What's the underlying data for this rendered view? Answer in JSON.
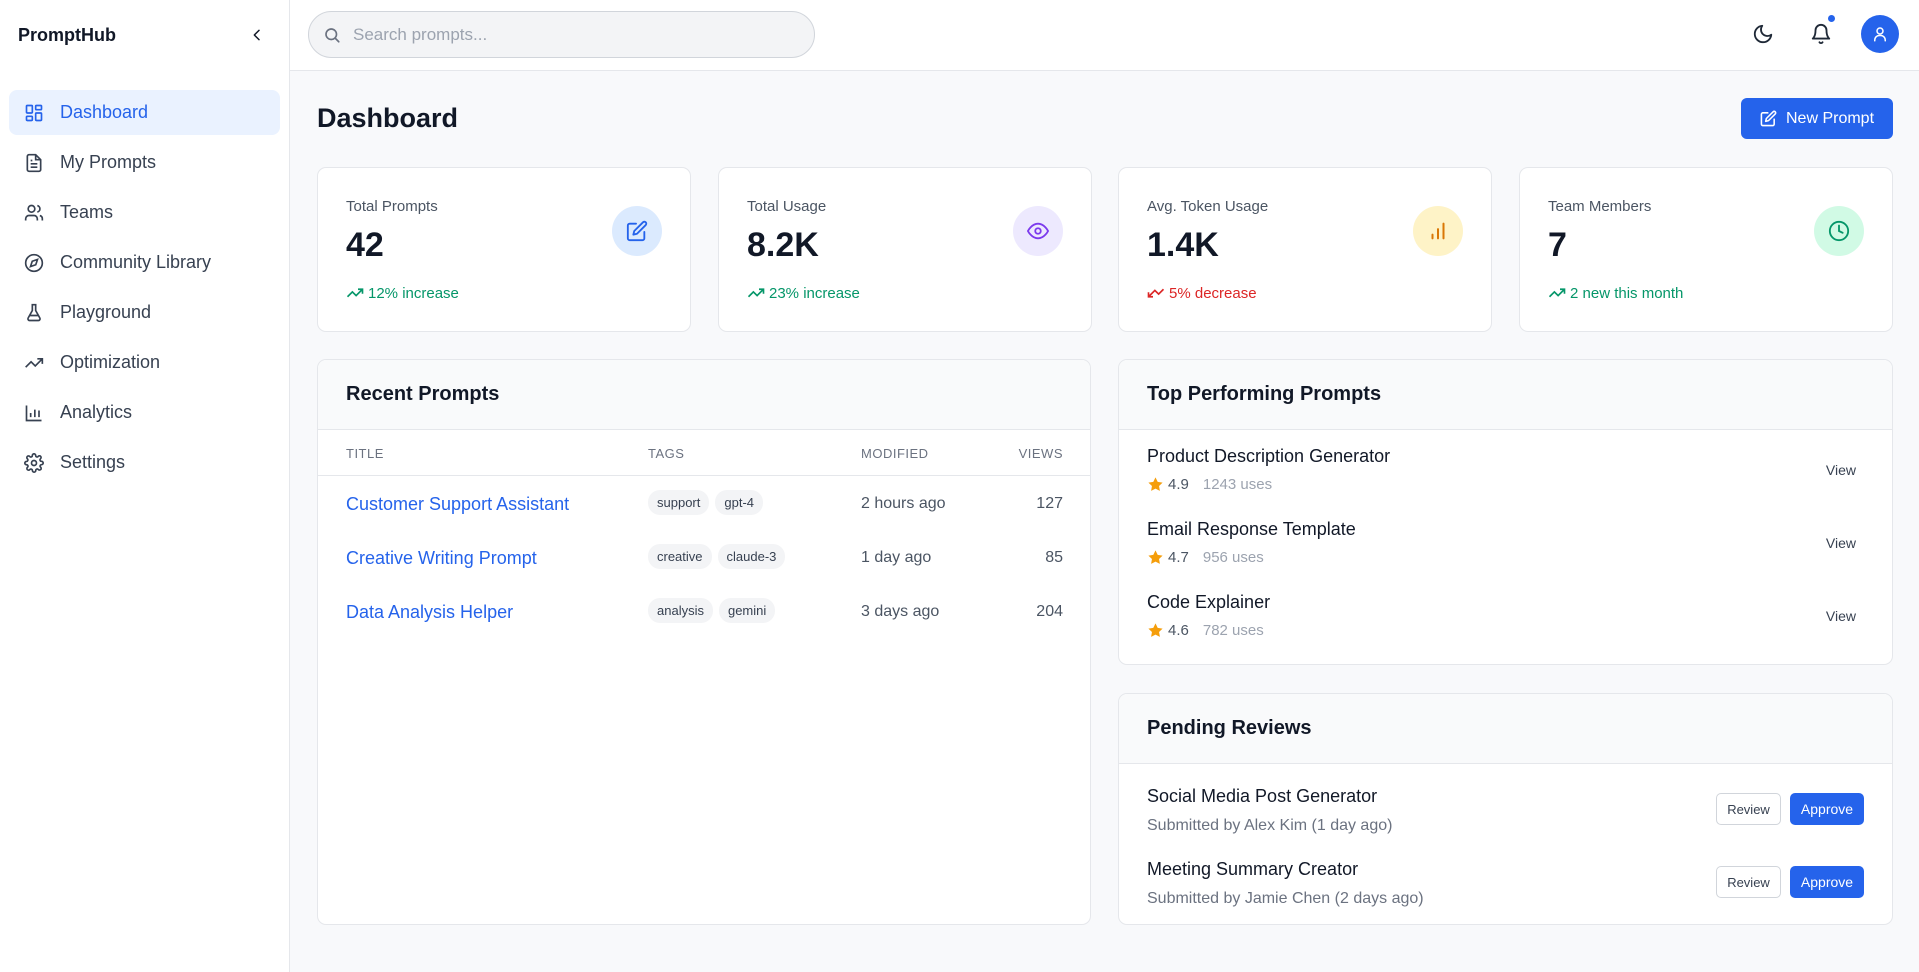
{
  "app": {
    "brand": "PromptHub"
  },
  "sidebar": {
    "items": [
      {
        "label": "Dashboard",
        "icon": "grid-icon",
        "active": true
      },
      {
        "label": "My Prompts",
        "icon": "document-icon"
      },
      {
        "label": "Teams",
        "icon": "users-icon"
      },
      {
        "label": "Community Library",
        "icon": "compass-icon"
      },
      {
        "label": "Playground",
        "icon": "flask-icon"
      },
      {
        "label": "Optimization",
        "icon": "trend-up-icon"
      },
      {
        "label": "Analytics",
        "icon": "bar-chart-icon"
      },
      {
        "label": "Settings",
        "icon": "gear-icon"
      }
    ]
  },
  "header": {
    "search_placeholder": "Search prompts...",
    "search_value": ""
  },
  "page": {
    "title": "Dashboard",
    "new_button": "New Prompt"
  },
  "stats": [
    {
      "label": "Total Prompts",
      "value": "42",
      "trend": "12% increase",
      "direction": "up",
      "icon": "edit-icon",
      "color": "#2563eb",
      "bg": "#dbeafe"
    },
    {
      "label": "Total Usage",
      "value": "8.2K",
      "trend": "23% increase",
      "direction": "up",
      "icon": "eye-icon",
      "color": "#7c3aed",
      "bg": "#ede9fe"
    },
    {
      "label": "Avg. Token Usage",
      "value": "1.4K",
      "trend": "5% decrease",
      "direction": "down",
      "icon": "bar-chart-icon",
      "color": "#d97706",
      "bg": "#fef3c7"
    },
    {
      "label": "Team Members",
      "value": "7",
      "trend": "2 new this month",
      "direction": "up",
      "icon": "clock-icon",
      "color": "#059669",
      "bg": "#d1fae5"
    }
  ],
  "recent": {
    "title": "Recent Prompts",
    "columns": {
      "title": "TITLE",
      "tags": "TAGS",
      "modified": "MODIFIED",
      "views": "VIEWS"
    },
    "rows": [
      {
        "title": "Customer Support Assistant",
        "tags": [
          "support",
          "gpt-4"
        ],
        "modified": "2 hours ago",
        "views": "127"
      },
      {
        "title": "Creative Writing Prompt",
        "tags": [
          "creative",
          "claude-3"
        ],
        "modified": "1 day ago",
        "views": "85"
      },
      {
        "title": "Data Analysis Helper",
        "tags": [
          "analysis",
          "gemini"
        ],
        "modified": "3 days ago",
        "views": "204"
      }
    ]
  },
  "top": {
    "title": "Top Performing Prompts",
    "view_label": "View",
    "items": [
      {
        "name": "Product Description Generator",
        "rating": "4.9",
        "uses": "1243 uses"
      },
      {
        "name": "Email Response Template",
        "rating": "4.7",
        "uses": "956 uses"
      },
      {
        "name": "Code Explainer",
        "rating": "4.6",
        "uses": "782 uses"
      }
    ]
  },
  "pending": {
    "title": "Pending Reviews",
    "review_label": "Review",
    "approve_label": "Approve",
    "items": [
      {
        "name": "Social Media Post Generator",
        "submitted": "Submitted by Alex Kim (1 day ago)"
      },
      {
        "name": "Meeting Summary Creator",
        "submitted": "Submitted by Jamie Chen (2 days ago)"
      }
    ]
  },
  "colors": {
    "accent": "#2563eb",
    "up": "#059669",
    "down": "#dc2626",
    "star": "#f59e0b"
  }
}
